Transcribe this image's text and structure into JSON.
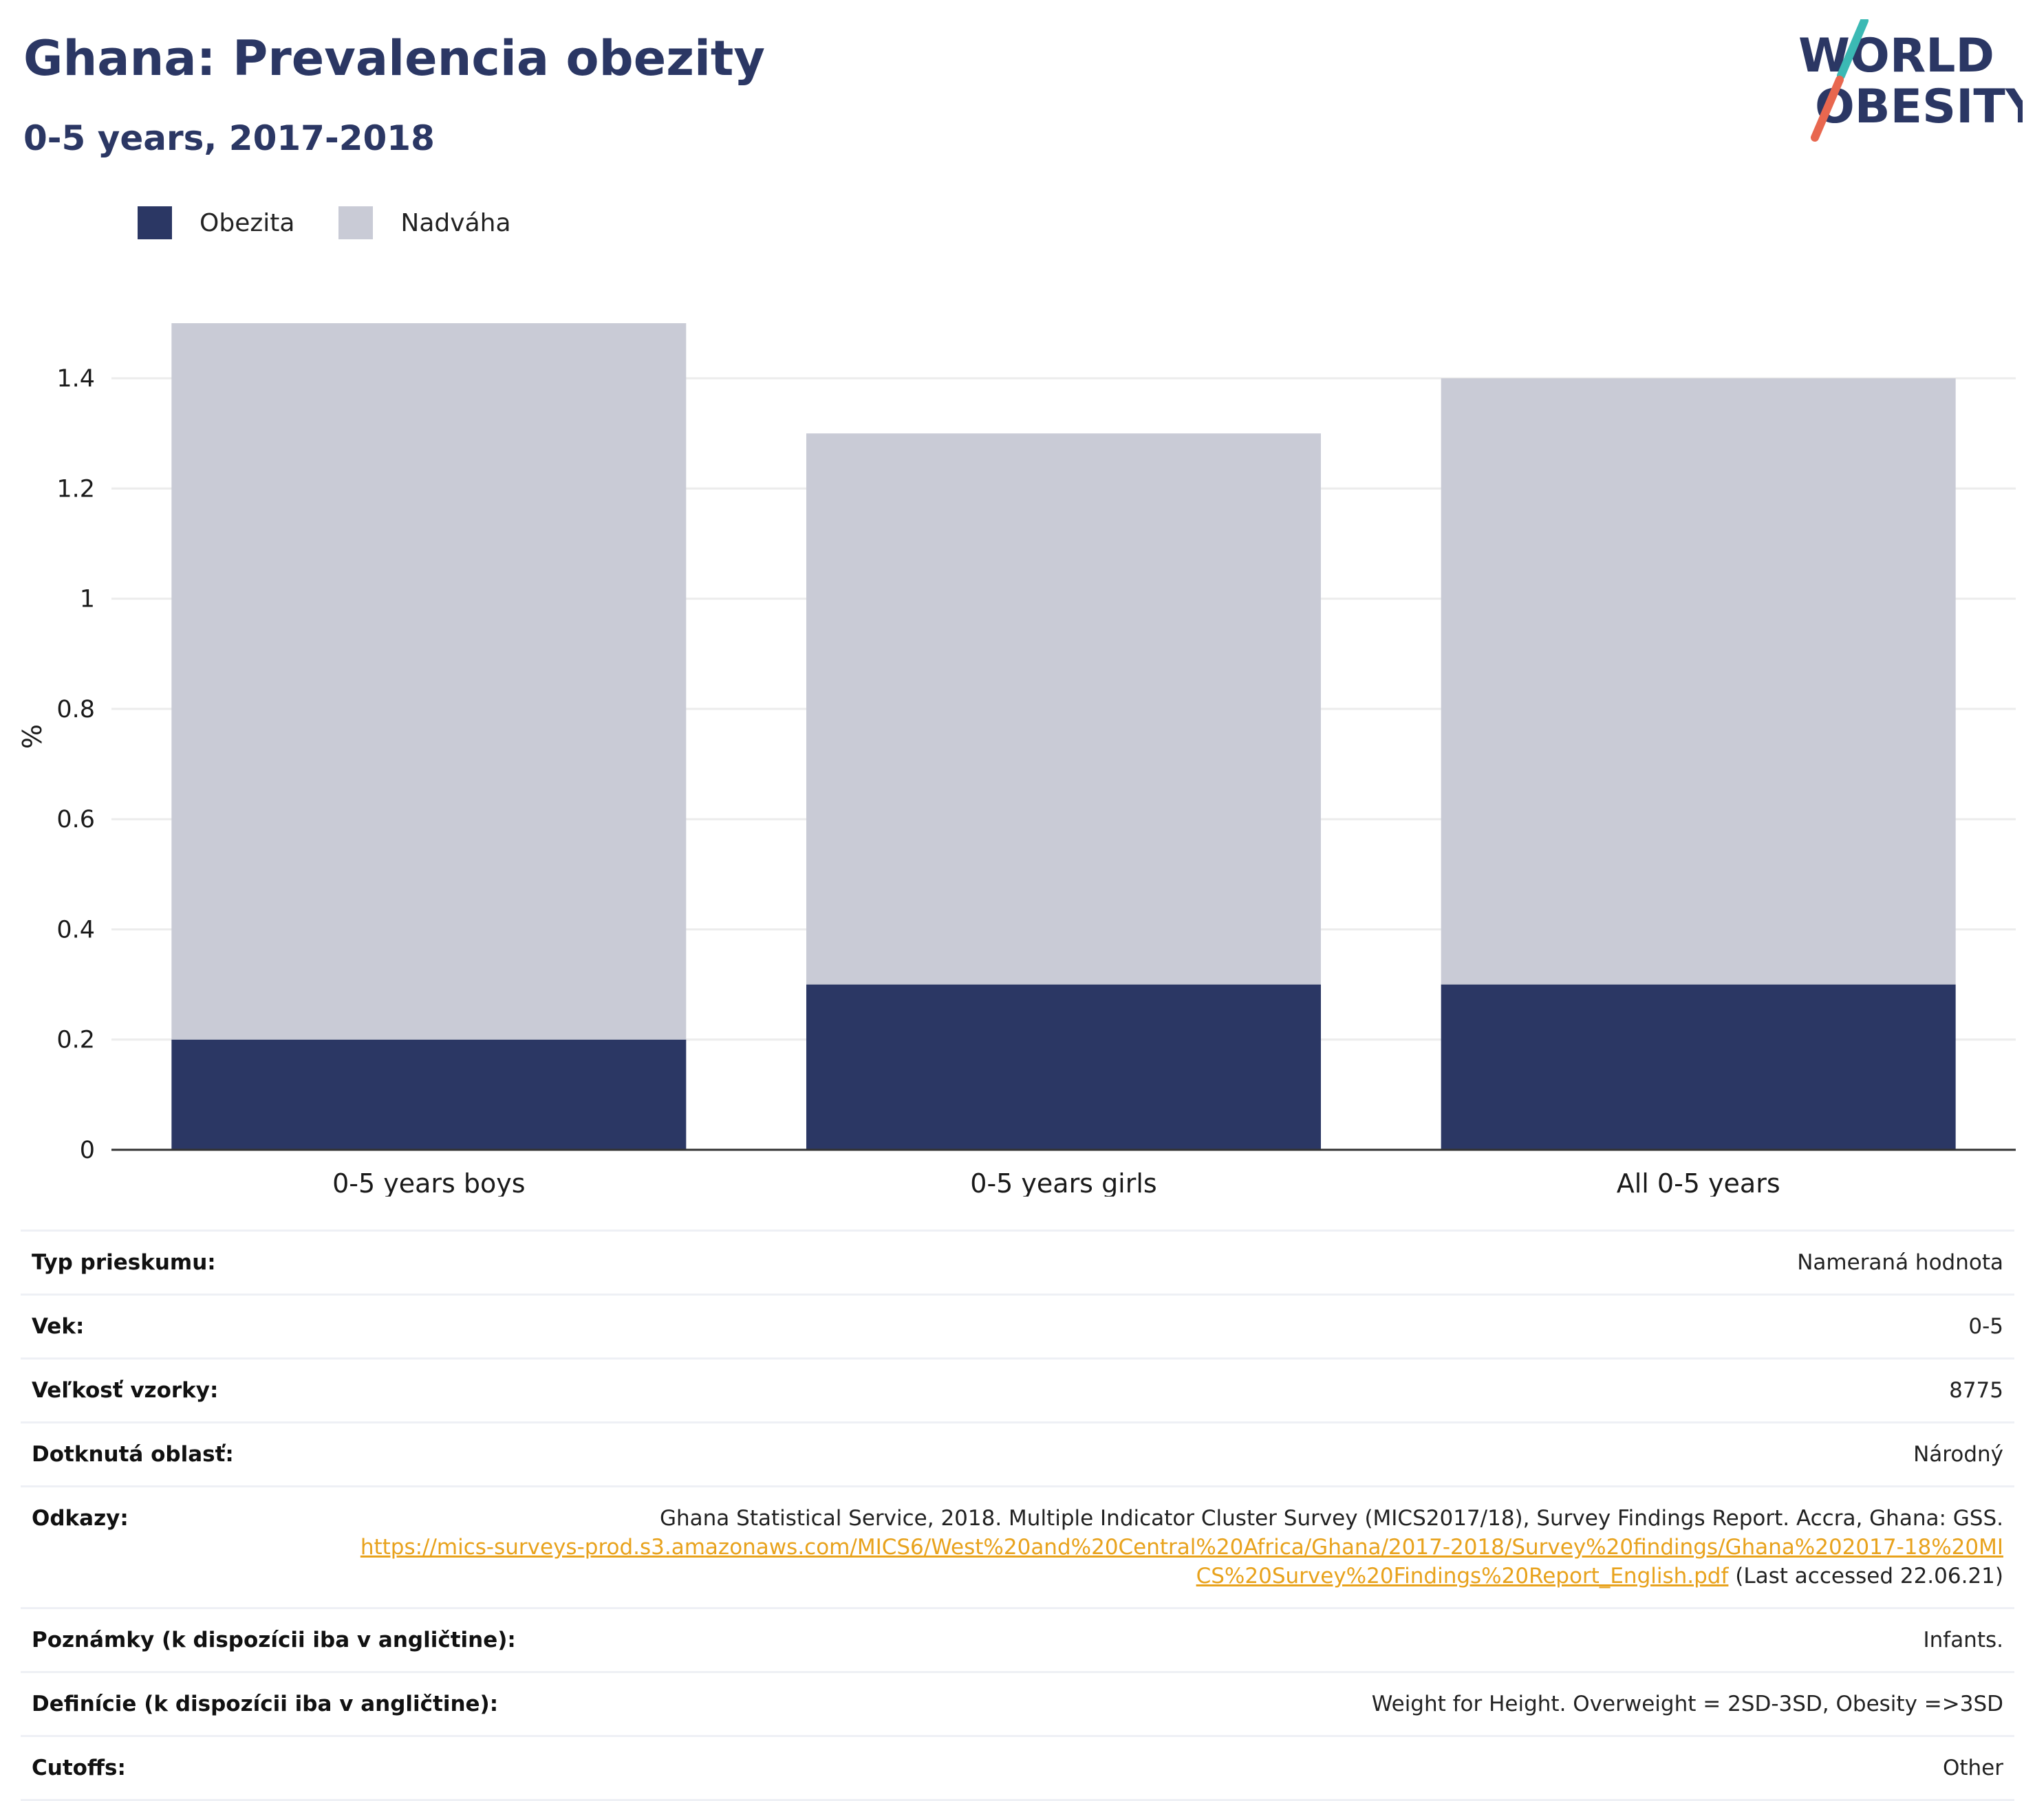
{
  "header": {
    "title": "Ghana: Prevalencia obezity",
    "subtitle": "0-5 years, 2017-2018"
  },
  "logo": {
    "line1": "WORLD",
    "line2": "OBESITY",
    "colors": {
      "text": "#2b3764",
      "slash_teal": "#3bb9b4",
      "slash_orange": "#e8674f"
    }
  },
  "colors": {
    "obesity": "#2b3764",
    "overweight": "#c9cbd6",
    "title": "#2b3764",
    "link": "#e8a21c",
    "grid": "#ececec",
    "axis": "#333333"
  },
  "chart_data": {
    "type": "bar",
    "stacked": true,
    "categories": [
      "0-5 years boys",
      "0-5 years girls",
      "All 0-5 years"
    ],
    "series": [
      {
        "name": "Obezita",
        "key": "obesity",
        "values": [
          0.2,
          0.3,
          0.3
        ]
      },
      {
        "name": "Nadváha",
        "key": "overweight",
        "values": [
          1.3,
          1.0,
          1.1
        ]
      }
    ],
    "totals": [
      1.5,
      1.3,
      1.4
    ],
    "ylabel": "%",
    "ylim": [
      0,
      1.5
    ],
    "yticks": [
      0,
      0.2,
      0.4,
      0.6,
      0.8,
      1,
      1.2,
      1.4
    ],
    "ytick_labels": [
      "0",
      "0.2",
      "0.4",
      "0.6",
      "0.8",
      "1",
      "1.2",
      "1.4"
    ],
    "grid": true,
    "legend_position": "top-left"
  },
  "meta": {
    "rows": [
      {
        "label": "Typ prieskumu:",
        "value": "Nameraná hodnota"
      },
      {
        "label": "Vek:",
        "value": "0-5"
      },
      {
        "label": "Veľkosť vzorky:",
        "value": "8775"
      },
      {
        "label": "Dotknutá oblasť:",
        "value": "Národný"
      },
      {
        "label": "Odkazy:",
        "value": "Ghana Statistical Service, 2018. Multiple Indicator Cluster Survey (MICS2017/18), Survey Findings Report. Accra, Ghana: GSS.",
        "link": "https://mics-surveys-prod.s3.amazonaws.com/MICS6/West%20and%20Central%20Africa/Ghana/2017-2018/Survey%20findings/Ghana%202017-18%20MICS%20Survey%20Findings%20Report_English.pdf",
        "suffix": "(Last accessed 22.06.21)"
      },
      {
        "label": "Poznámky (k dispozícii iba v angličtine):",
        "value": "Infants."
      },
      {
        "label": "Definície (k dispozícii iba v angličtine):",
        "value": "Weight for Height. Overweight = 2SD-3SD, Obesity =>3SD"
      },
      {
        "label": "Cutoffs:",
        "value": "Other"
      }
    ]
  }
}
